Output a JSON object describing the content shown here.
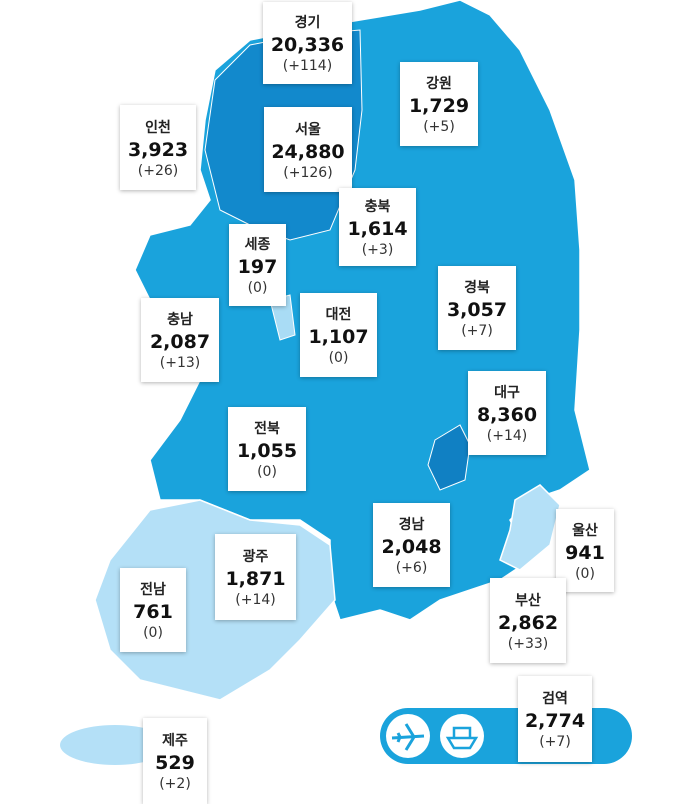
{
  "regions": [
    {
      "name": "경기",
      "total": "20,336",
      "change": "(+114)"
    },
    {
      "name": "강원",
      "total": "1,729",
      "change": "(+5)"
    },
    {
      "name": "인천",
      "total": "3,923",
      "change": "(+26)"
    },
    {
      "name": "서울",
      "total": "24,880",
      "change": "(+126)"
    },
    {
      "name": "충북",
      "total": "1,614",
      "change": "(+3)"
    },
    {
      "name": "세종",
      "total": "197",
      "change": "(0)"
    },
    {
      "name": "경북",
      "total": "3,057",
      "change": "(+7)"
    },
    {
      "name": "대전",
      "total": "1,107",
      "change": "(0)"
    },
    {
      "name": "충남",
      "total": "2,087",
      "change": "(+13)"
    },
    {
      "name": "대구",
      "total": "8,360",
      "change": "(+14)"
    },
    {
      "name": "전북",
      "total": "1,055",
      "change": "(0)"
    },
    {
      "name": "경남",
      "total": "2,048",
      "change": "(+6)"
    },
    {
      "name": "울산",
      "total": "941",
      "change": "(0)"
    },
    {
      "name": "광주",
      "total": "1,871",
      "change": "(+14)"
    },
    {
      "name": "전남",
      "total": "761",
      "change": "(0)"
    },
    {
      "name": "부산",
      "total": "2,862",
      "change": "(+33)"
    },
    {
      "name": "검역",
      "total": "2,774",
      "change": "(+7)"
    },
    {
      "name": "제주",
      "total": "529",
      "change": "(+2)"
    }
  ]
}
